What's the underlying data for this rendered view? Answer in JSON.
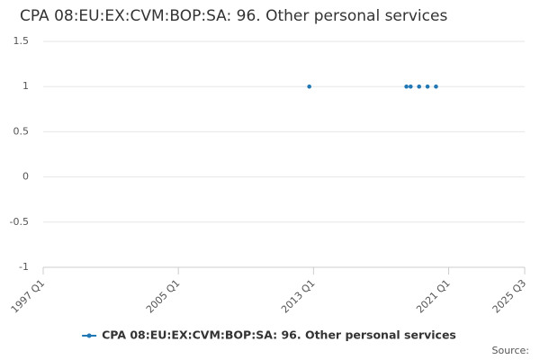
{
  "chart_data": {
    "type": "scatter",
    "title": "CPA 08:EU:EX:CVM:BOP:SA: 96. Other personal services",
    "x": [
      "2012 Q4",
      "2018 Q3",
      "2018 Q4",
      "2019 Q2",
      "2019 Q4",
      "2020 Q2"
    ],
    "series": [
      {
        "name": "CPA 08:EU:EX:CVM:BOP:SA: 96. Other personal services",
        "color": "#2278b5",
        "values": [
          1,
          1,
          1,
          1,
          1,
          1
        ]
      }
    ],
    "xlim": [
      "1997 Q1",
      "2025 Q3"
    ],
    "xticks": [
      "1997 Q1",
      "2005 Q1",
      "2013 Q1",
      "2021 Q1",
      "2025 Q3"
    ],
    "ylim": [
      -1,
      1.5
    ],
    "yticks": [
      1.5,
      1,
      0.5,
      0,
      -0.5,
      -1
    ],
    "grid": true,
    "legend": "bottom",
    "source": "Source:"
  }
}
